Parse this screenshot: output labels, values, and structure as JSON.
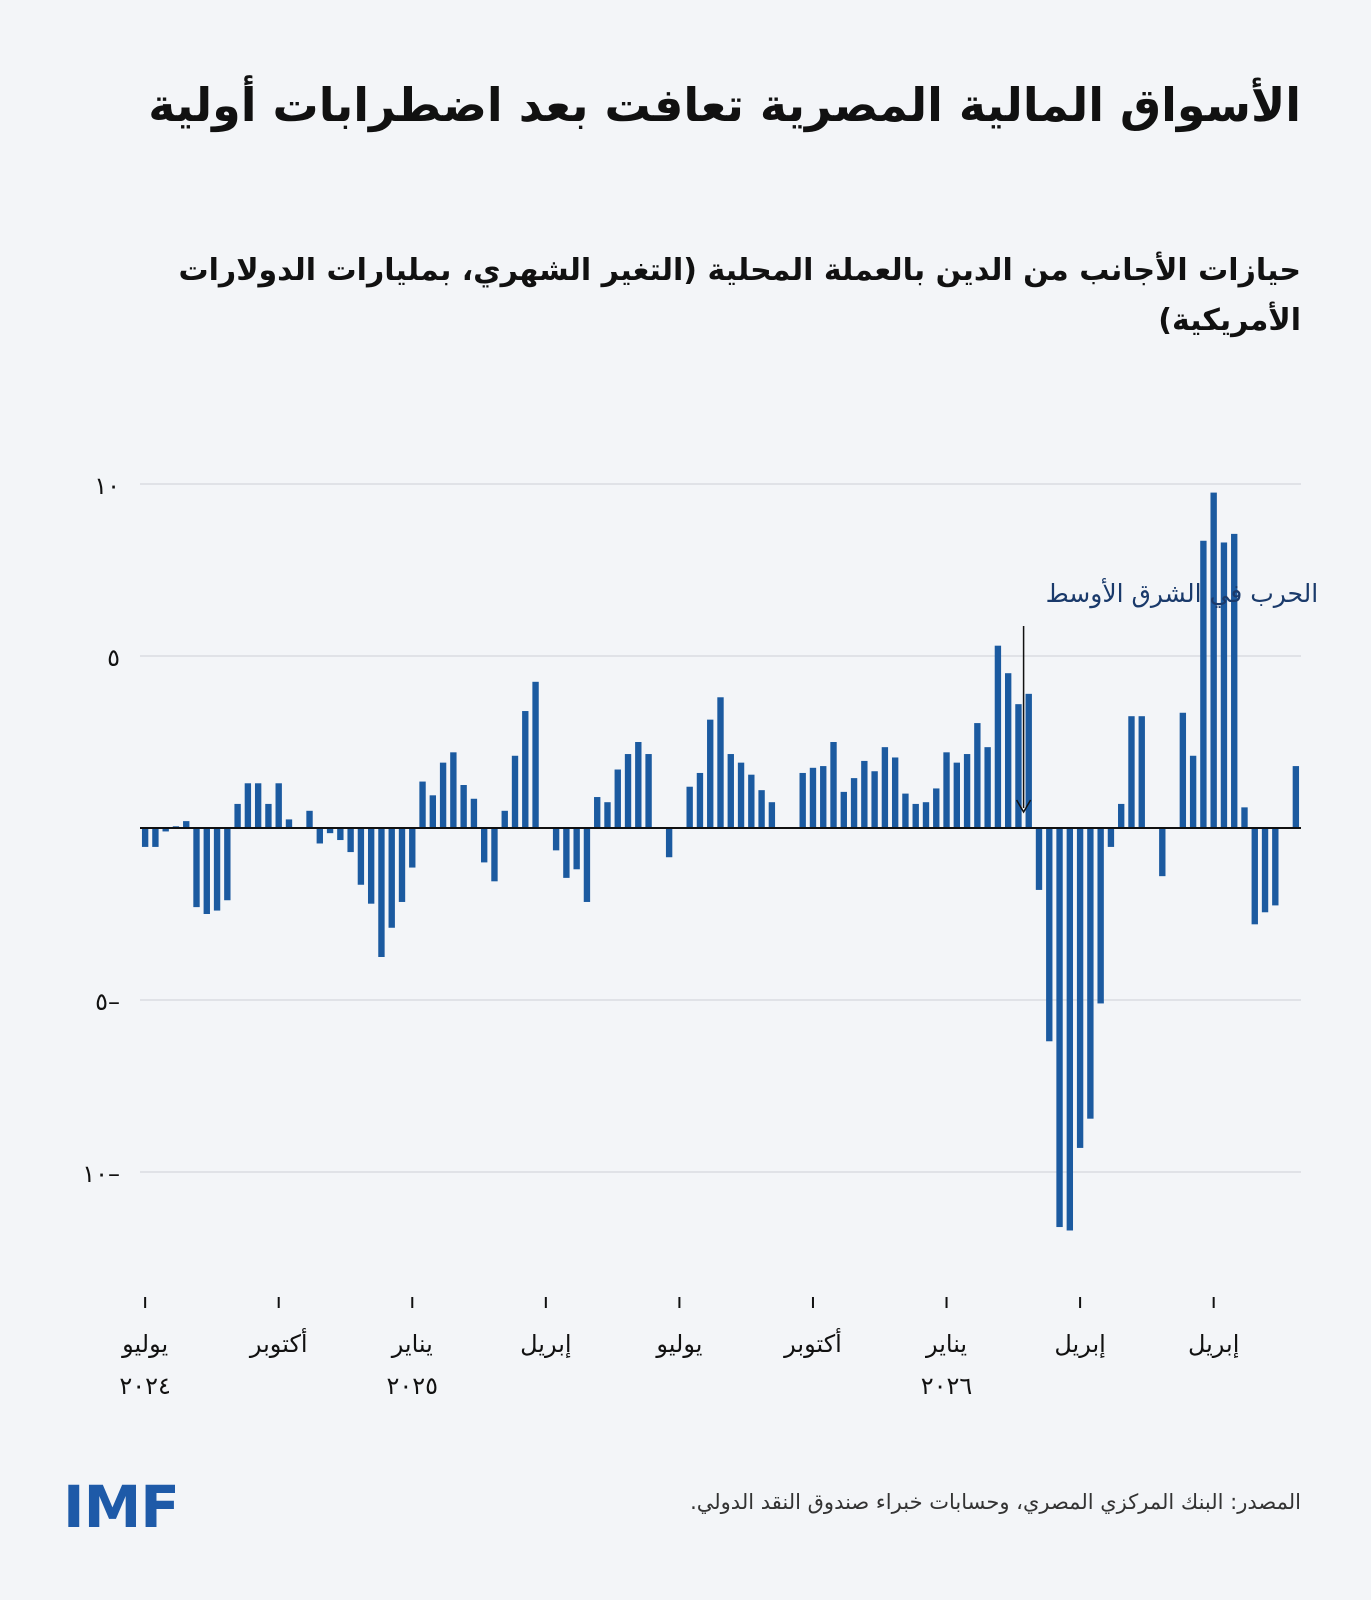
{
  "title": "الأسواق المالية المصرية تعافت بعد اضطرابات أولية",
  "subtitle": "حيازات الأجانب من الدين بالعملة المحلية (التغير الشهري، بمليارات الدولارات الأمريكية)",
  "source": "المصدر: البنك المركزي المصري، وحسابات خبراء صندوق النقد الدولي.",
  "logo": "IMF",
  "colors": {
    "bar": "#1b5aa0",
    "grid": "#d9dce1",
    "axis": "#111111",
    "annotation": "#1a3a6b"
  },
  "chart_data": {
    "type": "bar",
    "ylim": [
      -11,
      10
    ],
    "yticks": [
      10,
      5,
      -5,
      -10
    ],
    "ytick_labels": [
      "١٠",
      "٥",
      "٥–",
      "١٠–"
    ],
    "grid": true,
    "xtick_labels": [
      {
        "line1": "يوليو",
        "line2": "٢٠٢٤"
      },
      {
        "line1": "أكتوبر",
        "line2": ""
      },
      {
        "line1": "يناير",
        "line2": "٢٠٢٥"
      },
      {
        "line1": "إبريل",
        "line2": ""
      },
      {
        "line1": "يوليو",
        "line2": ""
      },
      {
        "line1": "أكتوبر",
        "line2": ""
      },
      {
        "line1": "يناير",
        "line2": "٢٠٢٦"
      },
      {
        "line1": "إبريل",
        "line2": ""
      },
      {
        "line1": "إبريل",
        "line2": ""
      }
    ],
    "annotation": {
      "text": "الحرب في الشرق الأوسط",
      "at_index": 85
    },
    "values": [
      -0.55,
      -0.55,
      -0.1,
      0.05,
      0.2,
      -2.3,
      -2.5,
      -2.4,
      -2.1,
      0.7,
      1.3,
      1.3,
      0.7,
      1.3,
      0.25,
      0,
      0.5,
      -0.45,
      -0.15,
      -0.35,
      -0.7,
      -1.65,
      -2.2,
      -3.75,
      -2.9,
      -2.15,
      -1.15,
      1.35,
      0.95,
      1.9,
      2.2,
      1.25,
      0.85,
      -1.0,
      -1.55,
      0.5,
      2.1,
      3.4,
      4.25,
      0,
      -0.65,
      -1.45,
      -1.2,
      -2.15,
      0.9,
      0.75,
      1.7,
      2.15,
      2.5,
      2.15,
      0,
      -0.85,
      0,
      1.2,
      1.6,
      3.15,
      3.8,
      2.15,
      1.9,
      1.55,
      1.1,
      0.75,
      0,
      0,
      1.6,
      1.75,
      1.8,
      2.5,
      1.05,
      1.45,
      1.95,
      1.65,
      2.35,
      2.05,
      1.0,
      0.7,
      0.75,
      1.15,
      2.2,
      1.9,
      2.15,
      3.05,
      2.35,
      5.3,
      4.5,
      3.6,
      3.9,
      -1.8,
      -6.2,
      -11.6,
      -11.7,
      -9.3,
      -8.45,
      -5.1,
      -0.55,
      0.7,
      3.25,
      3.25,
      0,
      -1.4,
      0,
      3.35,
      2.1,
      8.35,
      9.75,
      8.3,
      8.55,
      0.6,
      -2.8,
      -2.45,
      -2.25,
      0,
      1.8
    ]
  }
}
